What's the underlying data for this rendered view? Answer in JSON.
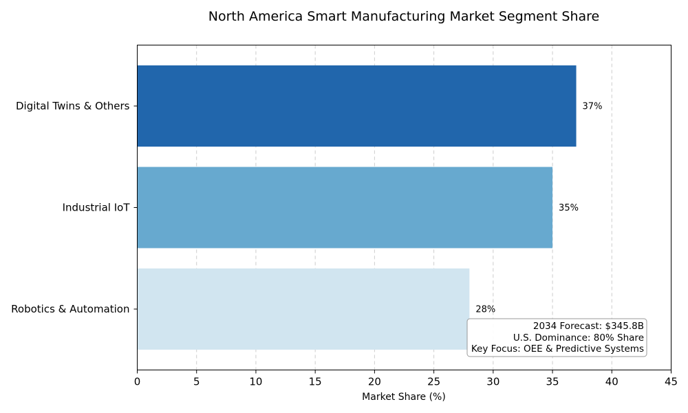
{
  "chart_data": {
    "type": "bar",
    "orientation": "horizontal",
    "title": "North America Smart Manufacturing Market Segment Share",
    "xlabel": "Market Share (%)",
    "ylabel": "",
    "xlim": [
      0,
      45
    ],
    "xticks": [
      0,
      5,
      10,
      15,
      20,
      25,
      30,
      35,
      40,
      45
    ],
    "grid": "x-dashed",
    "categories": [
      "Robotics & Automation",
      "Industrial IoT",
      "Digital Twins & Others"
    ],
    "values": [
      28,
      35,
      37
    ],
    "value_labels": [
      "28%",
      "35%",
      "37%"
    ],
    "colors": [
      "#d1e5f0",
      "#67a9cf",
      "#2166ac"
    ],
    "annotation": {
      "lines": [
        "2034 Forecast: $345.8B",
        "U.S. Dominance: 80% Share",
        "Key Focus: OEE & Predictive Systems"
      ],
      "placement": "bottom-right"
    }
  }
}
